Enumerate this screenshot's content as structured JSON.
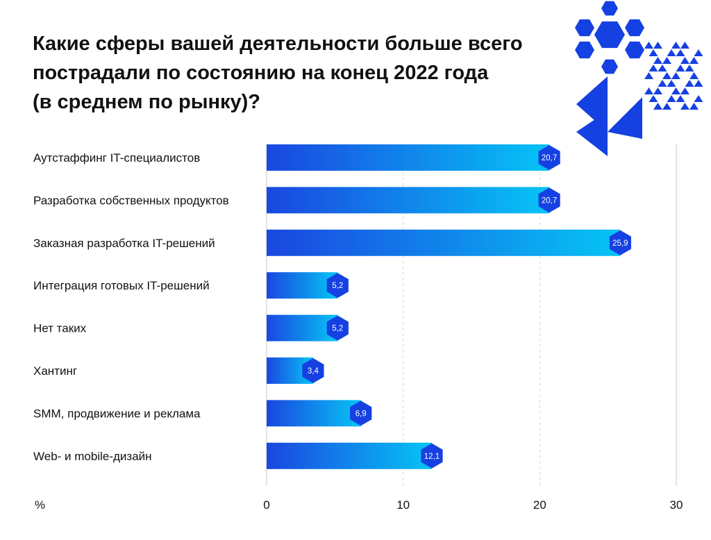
{
  "title_lines": [
    "Какие сферы вашей деятельности больше всего",
    "пострадали по состоянию на конец 2022 года",
    "(в среднем по рынку)?"
  ],
  "colors": {
    "bar_start": "#1a47e0",
    "bar_end": "#06c4f5",
    "badge": "#1540e2",
    "grid": "#d6d6d6",
    "axis": "#c4c4c4",
    "deco": "#1540e2"
  },
  "chart_data": {
    "type": "bar",
    "orientation": "horizontal",
    "categories": [
      "Аутстаффинг IT-специалистов",
      "Разработка собственных продуктов",
      "Заказная разработка IT-решений",
      "Интеграция готовых IT-решений",
      "Нет таких",
      "Хантинг",
      "SMM, продвижение и реклама",
      "Web- и mobile-дизайн"
    ],
    "values": [
      20.7,
      20.7,
      25.9,
      5.2,
      5.2,
      3.4,
      6.9,
      12.1
    ],
    "value_labels": [
      "20,7",
      "20,7",
      "25,9",
      "5,2",
      "5,2",
      "3,4",
      "6,9",
      "12,1"
    ],
    "xlim": [
      0,
      30
    ],
    "xticks": [
      0,
      10,
      20,
      30
    ],
    "xtick_labels": [
      "0",
      "10",
      "20",
      "30"
    ],
    "xlabel": "%",
    "grid": "vertical dashed"
  }
}
